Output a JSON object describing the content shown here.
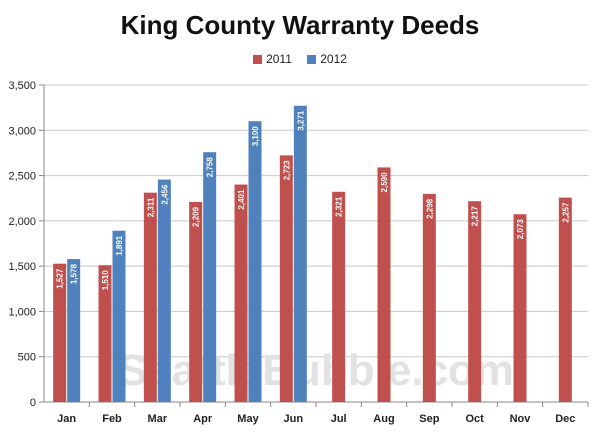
{
  "chart_data": {
    "type": "bar",
    "title": "King County Warranty Deeds",
    "categories": [
      "Jan",
      "Feb",
      "Mar",
      "Apr",
      "May",
      "Jun",
      "Jul",
      "Aug",
      "Sep",
      "Oct",
      "Nov",
      "Dec"
    ],
    "series": [
      {
        "name": "2011",
        "color": "#C0504D",
        "values": [
          1527,
          1510,
          2311,
          2209,
          2401,
          2723,
          2321,
          2590,
          2298,
          2217,
          2073,
          2257
        ]
      },
      {
        "name": "2012",
        "color": "#4F81BD",
        "values": [
          1578,
          1891,
          2456,
          2758,
          3100,
          3271,
          null,
          null,
          null,
          null,
          null,
          null
        ]
      }
    ],
    "ylim": [
      0,
      3500
    ],
    "yticks": [
      "0",
      "500",
      "1,000",
      "1,500",
      "2,000",
      "2,500",
      "3,000",
      "3,500"
    ],
    "ytick_values": [
      0,
      500,
      1000,
      1500,
      2000,
      2500,
      3000,
      3500
    ],
    "legend": "top-center",
    "grid": true,
    "watermark": "SeattleBubble.com"
  }
}
